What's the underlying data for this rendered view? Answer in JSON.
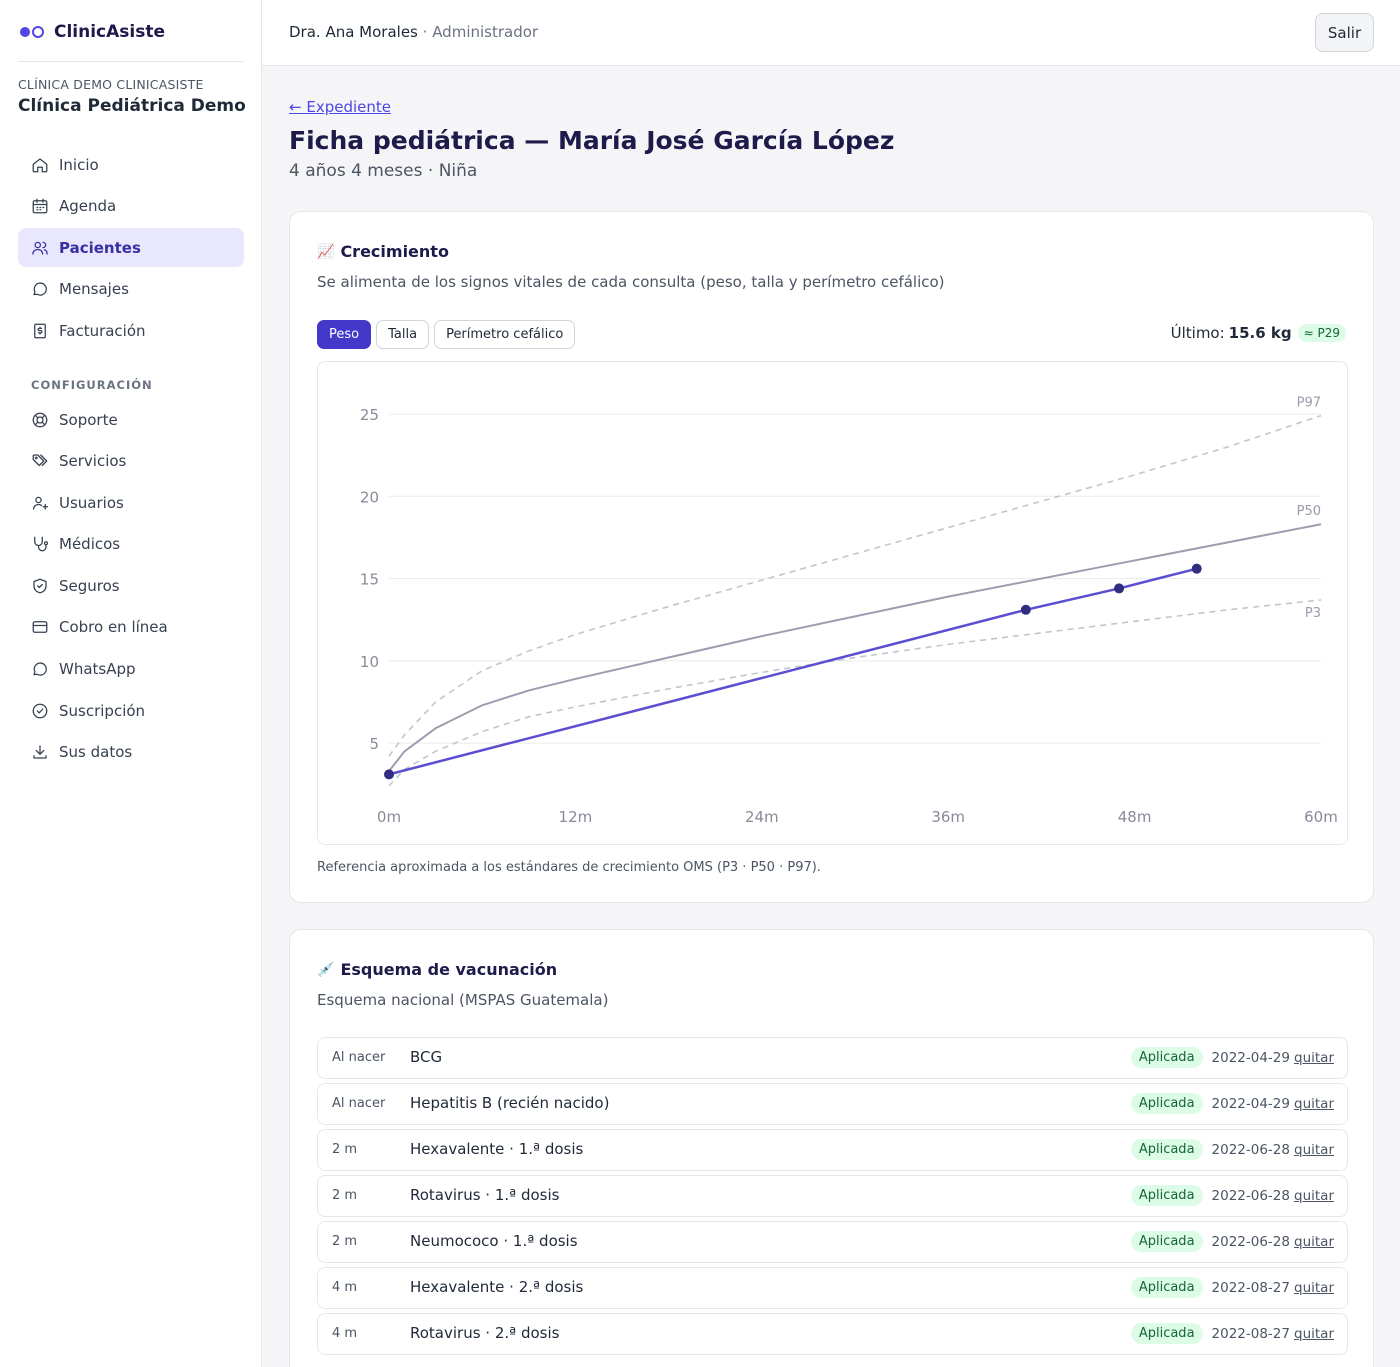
{
  "brand": {
    "name": "ClinicAsiste"
  },
  "org": {
    "kicker": "CLÍNICA DEMO CLINICASISTE",
    "name": "Clínica Pediátrica Demo"
  },
  "nav": {
    "main": [
      {
        "label": "Inicio",
        "icon": "home-icon"
      },
      {
        "label": "Agenda",
        "icon": "calendar-icon"
      },
      {
        "label": "Pacientes",
        "icon": "users-icon",
        "active": true
      },
      {
        "label": "Mensajes",
        "icon": "message-icon"
      },
      {
        "label": "Facturación",
        "icon": "invoice-icon"
      }
    ],
    "section_label": "CONFIGURACIÓN",
    "config": [
      {
        "label": "Soporte",
        "icon": "lifebuoy-icon"
      },
      {
        "label": "Servicios",
        "icon": "tags-icon"
      },
      {
        "label": "Usuarios",
        "icon": "user-plus-icon"
      },
      {
        "label": "Médicos",
        "icon": "stethoscope-icon"
      },
      {
        "label": "Seguros",
        "icon": "shield-icon"
      },
      {
        "label": "Cobro en línea",
        "icon": "credit-card-icon"
      },
      {
        "label": "WhatsApp",
        "icon": "chat-icon"
      },
      {
        "label": "Suscripción",
        "icon": "check-badge-icon"
      },
      {
        "label": "Sus datos",
        "icon": "download-icon"
      }
    ]
  },
  "topbar": {
    "user_name": "Dra. Ana Morales",
    "separator": " · ",
    "user_role": "Administrador",
    "logout_label": "Salir"
  },
  "page": {
    "back_link": "← Expediente",
    "title": "Ficha pediátrica — María José García López",
    "subtitle": "4 años 4 meses · Niña"
  },
  "growth": {
    "emoji": "📈",
    "title": "Crecimiento",
    "description": "Se alimenta de los signos vitales de cada consulta (peso, talla y perímetro cefálico)",
    "tabs": [
      {
        "label": "Peso",
        "active": true
      },
      {
        "label": "Talla",
        "active": false
      },
      {
        "label": "Perímetro cefálico",
        "active": false
      }
    ],
    "latest_label": "Último:",
    "latest_value": "15.6 kg",
    "latest_percentile": "≈ P29",
    "note": "Referencia aproximada a los estándares de crecimiento OMS (P3 · P50 · P97)."
  },
  "chart_data": {
    "type": "line",
    "xlabel": "",
    "ylabel": "",
    "x_ticks": [
      "0m",
      "12m",
      "24m",
      "36m",
      "48m",
      "60m"
    ],
    "x_tick_values": [
      0,
      12,
      24,
      36,
      48,
      60
    ],
    "y_ticks": [
      5,
      10,
      15,
      20,
      25
    ],
    "xlim": [
      0,
      60
    ],
    "ylim": [
      3,
      25
    ],
    "grid": true,
    "reference_curves": [
      {
        "name": "P97",
        "style": "dashed",
        "color": "#c4c4cc",
        "x": [
          0,
          1,
          3,
          6,
          9,
          12,
          18,
          24,
          30,
          36,
          42,
          48,
          54,
          60
        ],
        "y": [
          4.2,
          5.5,
          7.5,
          9.4,
          10.6,
          11.6,
          13.3,
          14.9,
          16.5,
          18.1,
          19.7,
          21.3,
          23.0,
          24.9
        ]
      },
      {
        "name": "P50",
        "style": "solid",
        "color": "#a09bb0",
        "x": [
          0,
          1,
          3,
          6,
          9,
          12,
          18,
          24,
          30,
          36,
          42,
          48,
          54,
          60
        ],
        "y": [
          3.3,
          4.5,
          5.9,
          7.3,
          8.2,
          8.9,
          10.2,
          11.5,
          12.7,
          13.9,
          15.0,
          16.1,
          17.2,
          18.3
        ]
      },
      {
        "name": "P3",
        "style": "dashed",
        "color": "#c4c4cc",
        "x": [
          0,
          1,
          3,
          6,
          9,
          12,
          18,
          24,
          30,
          36,
          42,
          48,
          54,
          60
        ],
        "y": [
          2.4,
          3.4,
          4.5,
          5.7,
          6.6,
          7.2,
          8.3,
          9.3,
          10.2,
          11.0,
          11.7,
          12.4,
          13.1,
          13.7
        ]
      }
    ],
    "series": [
      {
        "color": "#5b4ed1",
        "point_color": "#312e81",
        "x": [
          0,
          41,
          47,
          52
        ],
        "y": [
          3.1,
          13.1,
          14.4,
          15.6
        ]
      }
    ]
  },
  "vaccines": {
    "emoji": "💉",
    "title": "Esquema de vacunación",
    "description": "Esquema nacional (MSPAS Guatemala)",
    "remove_label": "quitar",
    "rows": [
      {
        "age": "Al nacer",
        "name": "BCG",
        "status": "Aplicada",
        "date": "2022-04-29"
      },
      {
        "age": "Al nacer",
        "name": "Hepatitis B (recién nacido)",
        "status": "Aplicada",
        "date": "2022-04-29"
      },
      {
        "age": "2 m",
        "name": "Hexavalente · 1.ª dosis",
        "status": "Aplicada",
        "date": "2022-06-28"
      },
      {
        "age": "2 m",
        "name": "Rotavirus · 1.ª dosis",
        "status": "Aplicada",
        "date": "2022-06-28"
      },
      {
        "age": "2 m",
        "name": "Neumococo · 1.ª dosis",
        "status": "Aplicada",
        "date": "2022-06-28"
      },
      {
        "age": "4 m",
        "name": "Hexavalente · 2.ª dosis",
        "status": "Aplicada",
        "date": "2022-08-27"
      },
      {
        "age": "4 m",
        "name": "Rotavirus · 2.ª dosis",
        "status": "Aplicada",
        "date": "2022-08-27"
      }
    ]
  }
}
